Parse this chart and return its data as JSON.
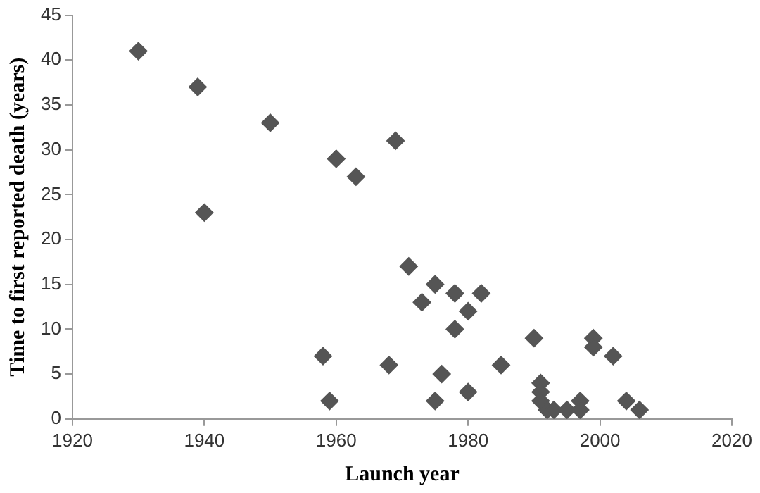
{
  "chart_data": {
    "type": "scatter",
    "xlabel": "Launch year",
    "ylabel": "Time to first reported death (years)",
    "x": [
      1930,
      1939,
      1940,
      1950,
      1958,
      1959,
      1960,
      1963,
      1968,
      1969,
      1971,
      1973,
      1975,
      1975,
      1976,
      1978,
      1978,
      1980,
      1980,
      1982,
      1985,
      1990,
      1991,
      1991,
      1991,
      1992,
      1993,
      1995,
      1997,
      1997,
      1999,
      1999,
      2002,
      2004,
      2006
    ],
    "values": [
      41,
      37,
      23,
      33,
      7,
      2,
      29,
      27,
      6,
      31,
      17,
      13,
      15,
      2,
      5,
      14,
      10,
      12,
      3,
      14,
      6,
      9,
      4,
      3,
      2,
      1,
      1,
      1,
      2,
      1,
      9,
      8,
      7,
      2,
      1
    ],
    "color": "#555555",
    "marker": "diamond",
    "xlim": [
      1920,
      2020
    ],
    "xticks": [
      1920,
      1940,
      1960,
      1980,
      2000,
      2020
    ],
    "ylim": [
      0,
      45
    ],
    "yticks": [
      0,
      5,
      10,
      15,
      20,
      25,
      30,
      35,
      40,
      45
    ],
    "grid": false,
    "legend": false
  }
}
